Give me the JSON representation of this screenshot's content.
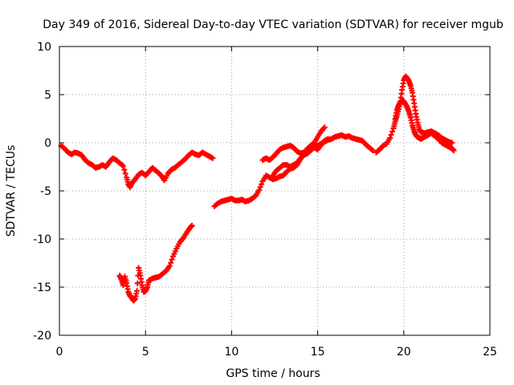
{
  "chart_data": {
    "type": "scatter",
    "title": "Day 349 of 2016, Sidereal Day-to-day VTEC variation (SDTVAR) for receiver mgub",
    "xlabel": "GPS time / hours",
    "ylabel": "SDTVAR / TECUs",
    "xlim": [
      0,
      25
    ],
    "ylim": [
      -20,
      10
    ],
    "x_ticks": [
      0,
      5,
      10,
      15,
      20,
      25
    ],
    "x_tick_labels": [
      "0",
      "5",
      "10",
      "15",
      "20",
      "25"
    ],
    "y_ticks": [
      -20,
      -15,
      -10,
      -5,
      0,
      5,
      10
    ],
    "y_tick_labels": [
      "-20",
      "-15",
      "-10",
      "-5",
      "0",
      "5",
      "10"
    ],
    "grid": true,
    "marker": "plus",
    "color": "#ff0000",
    "series": [
      {
        "points": [
          [
            0.1,
            -0.3
          ],
          [
            0.3,
            -0.6
          ],
          [
            0.5,
            -1.0
          ],
          [
            0.7,
            -1.2
          ],
          [
            0.9,
            -1.0
          ],
          [
            1.1,
            -1.1
          ],
          [
            1.3,
            -1.3
          ],
          [
            1.5,
            -1.8
          ],
          [
            1.7,
            -2.1
          ],
          [
            1.9,
            -2.3
          ],
          [
            2.1,
            -2.6
          ],
          [
            2.3,
            -2.5
          ],
          [
            2.5,
            -2.3
          ],
          [
            2.7,
            -2.5
          ],
          [
            2.9,
            -2.0
          ],
          [
            3.1,
            -1.6
          ],
          [
            3.3,
            -1.8
          ],
          [
            3.5,
            -2.1
          ],
          [
            3.7,
            -2.4
          ],
          [
            3.9,
            -3.6
          ],
          [
            4.0,
            -4.3
          ],
          [
            4.1,
            -4.6
          ],
          [
            4.2,
            -4.2
          ],
          [
            4.4,
            -3.8
          ],
          [
            4.6,
            -3.3
          ],
          [
            4.8,
            -3.1
          ],
          [
            5.0,
            -3.4
          ],
          [
            5.2,
            -3.0
          ],
          [
            5.4,
            -2.6
          ],
          [
            5.6,
            -2.9
          ],
          [
            5.8,
            -3.2
          ],
          [
            6.0,
            -3.6
          ],
          [
            6.1,
            -3.9
          ],
          [
            6.3,
            -3.2
          ],
          [
            6.5,
            -2.8
          ],
          [
            6.7,
            -2.6
          ],
          [
            6.9,
            -2.3
          ],
          [
            7.1,
            -2.0
          ],
          [
            7.3,
            -1.7
          ],
          [
            7.5,
            -1.3
          ],
          [
            7.7,
            -1.0
          ],
          [
            7.9,
            -1.2
          ],
          [
            8.1,
            -1.3
          ],
          [
            8.3,
            -1.0
          ],
          [
            8.5,
            -1.2
          ],
          [
            8.7,
            -1.4
          ],
          [
            8.9,
            -1.6
          ]
        ]
      },
      {
        "points": [
          [
            3.5,
            -13.8
          ],
          [
            3.6,
            -14.2
          ],
          [
            3.7,
            -14.8
          ],
          [
            3.8,
            -13.9
          ],
          [
            3.9,
            -14.6
          ],
          [
            4.0,
            -15.5
          ],
          [
            4.1,
            -15.9
          ],
          [
            4.2,
            -16.1
          ],
          [
            4.3,
            -16.4
          ],
          [
            4.4,
            -16.2
          ],
          [
            4.5,
            -15.4
          ],
          [
            4.6,
            -13.0
          ],
          [
            4.7,
            -13.8
          ],
          [
            4.8,
            -14.8
          ],
          [
            4.9,
            -15.5
          ],
          [
            5.0,
            -15.4
          ],
          [
            5.1,
            -15.0
          ],
          [
            5.2,
            -14.3
          ],
          [
            5.4,
            -14.1
          ],
          [
            5.6,
            -14.0
          ],
          [
            5.8,
            -13.9
          ],
          [
            6.0,
            -13.6
          ],
          [
            6.2,
            -13.3
          ],
          [
            6.4,
            -12.8
          ],
          [
            6.6,
            -11.8
          ],
          [
            6.8,
            -11.0
          ],
          [
            7.0,
            -10.3
          ],
          [
            7.2,
            -9.9
          ],
          [
            7.4,
            -9.3
          ],
          [
            7.6,
            -8.8
          ],
          [
            7.7,
            -8.6
          ]
        ]
      },
      {
        "points": [
          [
            9.0,
            -6.6
          ],
          [
            9.2,
            -6.3
          ],
          [
            9.4,
            -6.1
          ],
          [
            9.6,
            -6.0
          ],
          [
            9.8,
            -5.9
          ],
          [
            10.0,
            -5.8
          ],
          [
            10.2,
            -6.0
          ],
          [
            10.4,
            -6.0
          ],
          [
            10.6,
            -5.9
          ],
          [
            10.8,
            -6.1
          ],
          [
            11.0,
            -6.0
          ],
          [
            11.2,
            -5.8
          ],
          [
            11.4,
            -5.5
          ],
          [
            11.6,
            -4.9
          ],
          [
            11.8,
            -4.0
          ],
          [
            12.0,
            -3.4
          ],
          [
            12.2,
            -3.6
          ],
          [
            12.4,
            -3.8
          ],
          [
            12.6,
            -3.7
          ],
          [
            12.8,
            -3.5
          ],
          [
            13.0,
            -3.4
          ],
          [
            13.2,
            -3.0
          ],
          [
            13.4,
            -2.7
          ],
          [
            13.6,
            -2.6
          ],
          [
            13.8,
            -2.3
          ],
          [
            14.0,
            -1.7
          ],
          [
            14.2,
            -1.1
          ],
          [
            14.4,
            -0.6
          ],
          [
            14.6,
            -0.3
          ],
          [
            14.8,
            0.0
          ],
          [
            15.0,
            0.6
          ],
          [
            15.2,
            1.2
          ],
          [
            15.4,
            1.6
          ]
        ]
      },
      {
        "points": [
          [
            11.8,
            -1.8
          ],
          [
            12.0,
            -1.6
          ],
          [
            12.2,
            -1.8
          ],
          [
            12.4,
            -1.5
          ],
          [
            12.6,
            -1.1
          ],
          [
            12.8,
            -0.7
          ],
          [
            13.0,
            -0.5
          ],
          [
            13.2,
            -0.4
          ],
          [
            13.4,
            -0.3
          ],
          [
            13.6,
            -0.5
          ],
          [
            13.8,
            -0.9
          ],
          [
            14.0,
            -1.1
          ],
          [
            14.2,
            -1.0
          ],
          [
            14.4,
            -0.7
          ],
          [
            14.6,
            -0.4
          ],
          [
            14.8,
            -0.5
          ],
          [
            15.0,
            -0.7
          ],
          [
            15.2,
            -0.2
          ],
          [
            15.4,
            0.1
          ],
          [
            15.6,
            0.3
          ],
          [
            15.8,
            0.4
          ],
          [
            16.0,
            0.6
          ],
          [
            16.2,
            0.7
          ],
          [
            16.4,
            0.8
          ],
          [
            16.6,
            0.6
          ],
          [
            16.8,
            0.7
          ],
          [
            17.0,
            0.5
          ],
          [
            17.2,
            0.4
          ],
          [
            17.4,
            0.3
          ],
          [
            17.6,
            0.2
          ],
          [
            17.8,
            -0.2
          ],
          [
            18.0,
            -0.5
          ],
          [
            18.2,
            -0.8
          ]
        ]
      },
      {
        "points": [
          [
            12.4,
            -3.4
          ],
          [
            12.6,
            -2.9
          ],
          [
            12.8,
            -2.6
          ],
          [
            13.0,
            -2.3
          ],
          [
            13.2,
            -2.3
          ],
          [
            13.4,
            -2.5
          ],
          [
            13.6,
            -2.3
          ],
          [
            13.8,
            -2.1
          ],
          [
            14.0,
            -1.6
          ],
          [
            14.2,
            -1.3
          ],
          [
            14.4,
            -1.1
          ],
          [
            14.6,
            -0.8
          ],
          [
            14.8,
            -0.4
          ],
          [
            15.0,
            -0.3
          ],
          [
            15.2,
            -0.1
          ],
          [
            15.4,
            0.2
          ],
          [
            15.6,
            0.4
          ]
        ]
      },
      {
        "points": [
          [
            18.4,
            -1.0
          ],
          [
            18.6,
            -0.7
          ],
          [
            18.8,
            -0.3
          ],
          [
            19.0,
            -0.1
          ],
          [
            19.2,
            0.5
          ],
          [
            19.4,
            1.5
          ],
          [
            19.5,
            2.2
          ],
          [
            19.6,
            2.8
          ],
          [
            19.7,
            3.5
          ],
          [
            19.8,
            4.3
          ],
          [
            19.9,
            5.5
          ],
          [
            20.0,
            6.5
          ],
          [
            20.1,
            6.9
          ],
          [
            20.2,
            6.7
          ],
          [
            20.3,
            6.4
          ],
          [
            20.4,
            5.9
          ],
          [
            20.5,
            5.2
          ],
          [
            20.6,
            4.1
          ],
          [
            20.7,
            3.0
          ],
          [
            20.8,
            2.1
          ],
          [
            20.9,
            1.4
          ],
          [
            21.0,
            1.1
          ],
          [
            21.2,
            1.0
          ],
          [
            21.4,
            1.1
          ],
          [
            21.6,
            1.2
          ],
          [
            21.8,
            1.0
          ],
          [
            22.0,
            0.8
          ],
          [
            22.2,
            0.5
          ],
          [
            22.4,
            0.3
          ],
          [
            22.6,
            0.1
          ],
          [
            22.8,
            0.0
          ]
        ]
      },
      {
        "points": [
          [
            19.5,
            2.5
          ],
          [
            19.6,
            3.4
          ],
          [
            19.7,
            3.9
          ],
          [
            19.8,
            4.2
          ],
          [
            19.9,
            4.4
          ],
          [
            20.0,
            4.3
          ],
          [
            20.1,
            4.0
          ],
          [
            20.2,
            3.7
          ],
          [
            20.3,
            3.2
          ],
          [
            20.4,
            2.6
          ],
          [
            20.5,
            1.8
          ],
          [
            20.6,
            1.2
          ],
          [
            20.7,
            0.8
          ],
          [
            20.8,
            0.6
          ],
          [
            20.9,
            0.5
          ],
          [
            21.0,
            0.4
          ],
          [
            21.2,
            0.6
          ],
          [
            21.4,
            0.8
          ],
          [
            21.6,
            1.0
          ],
          [
            21.8,
            0.7
          ],
          [
            22.0,
            0.4
          ],
          [
            22.2,
            0.0
          ],
          [
            22.4,
            -0.2
          ],
          [
            22.6,
            -0.4
          ],
          [
            22.8,
            -0.6
          ],
          [
            22.9,
            -0.8
          ]
        ]
      }
    ]
  }
}
